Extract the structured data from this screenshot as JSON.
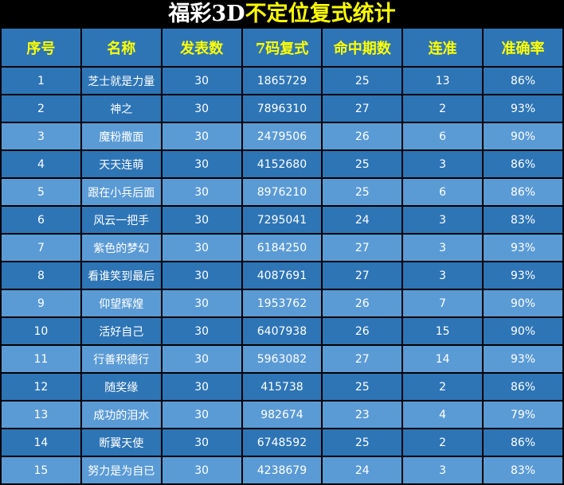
{
  "title": {
    "part1": "福彩3D",
    "part2": "不定位复式统计"
  },
  "colors": {
    "header_bg": "#2e75b6",
    "row_dark": "#2e75b6",
    "row_light": "#5b9bd5",
    "header_text": "#ffff00",
    "title_accent": "#ffff00"
  },
  "columns": [
    "序号",
    "名称",
    "发表数",
    "7码复式",
    "命中期数",
    "连准",
    "准确率"
  ],
  "rows": [
    [
      "1",
      "芝士就是力量",
      "30",
      "1865729",
      "25",
      "13",
      "86%"
    ],
    [
      "2",
      "神之",
      "30",
      "7896310",
      "27",
      "2",
      "93%"
    ],
    [
      "3",
      "魔粉撒面",
      "30",
      "2479506",
      "26",
      "6",
      "90%"
    ],
    [
      "4",
      "天天连萌",
      "30",
      "4152680",
      "25",
      "3",
      "86%"
    ],
    [
      "5",
      "跟在小兵后面",
      "30",
      "8976210",
      "25",
      "6",
      "86%"
    ],
    [
      "6",
      "风云一把手",
      "30",
      "7295041",
      "24",
      "3",
      "83%"
    ],
    [
      "7",
      "紫色的梦幻",
      "30",
      "6184250",
      "27",
      "3",
      "93%"
    ],
    [
      "8",
      "看谁笑到最后",
      "30",
      "4087691",
      "27",
      "3",
      "93%"
    ],
    [
      "9",
      "仰望辉煌",
      "30",
      "1953762",
      "26",
      "7",
      "90%"
    ],
    [
      "10",
      "活好自己",
      "30",
      "6407938",
      "26",
      "15",
      "90%"
    ],
    [
      "11",
      "行善积德行",
      "30",
      "5963082",
      "27",
      "14",
      "93%"
    ],
    [
      "12",
      "随奖缘",
      "30",
      "415738",
      "25",
      "2",
      "86%"
    ],
    [
      "13",
      "成功的泪水",
      "30",
      "982674",
      "23",
      "4",
      "79%"
    ],
    [
      "14",
      "断翼天使",
      "30",
      "6748592",
      "25",
      "2",
      "86%"
    ],
    [
      "15",
      "努力是为自已",
      "30",
      "4238679",
      "24",
      "3",
      "83%"
    ]
  ]
}
